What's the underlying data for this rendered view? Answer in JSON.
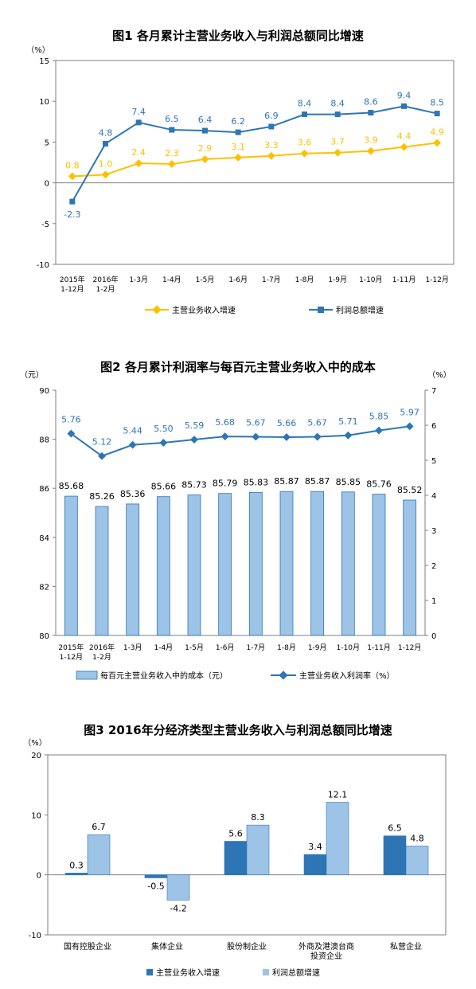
{
  "chart_data": [
    {
      "type": "line",
      "title": "图1  各月累计主营业务收入与利润总额同比增速",
      "y_unit": "（%）",
      "ylim": [
        -10,
        15
      ],
      "yticks": [
        "15",
        "10",
        "5",
        "0",
        "-5",
        "-10"
      ],
      "categories": [
        [
          "2015年",
          "1-12月"
        ],
        [
          "2016年",
          "1-2月"
        ],
        [
          "1-3月"
        ],
        [
          "1-4月"
        ],
        [
          "1-5月"
        ],
        [
          "1-6月"
        ],
        [
          "1-7月"
        ],
        [
          "1-8月"
        ],
        [
          "1-9月"
        ],
        [
          "1-10月"
        ],
        [
          "1-11月"
        ],
        [
          "1-12月"
        ]
      ],
      "series": [
        {
          "name": "主营业务收入增速",
          "color": "#ffc000",
          "marker": "diamond",
          "values": [
            0.8,
            1.0,
            2.4,
            2.3,
            2.9,
            3.1,
            3.3,
            3.6,
            3.7,
            3.9,
            4.4,
            4.9
          ],
          "labels": [
            "0.8",
            "1.0",
            "2.4",
            "2.3",
            "2.9",
            "3.1",
            "3.3",
            "3.6",
            "3.7",
            "3.9",
            "4.4",
            "4.9"
          ]
        },
        {
          "name": "利润总额增速",
          "color": "#2e75b6",
          "marker": "square",
          "values": [
            -2.3,
            4.8,
            7.4,
            6.5,
            6.4,
            6.2,
            6.9,
            8.4,
            8.4,
            8.6,
            9.4,
            8.5
          ],
          "labels": [
            "-2.3",
            "4.8",
            "7.4",
            "6.5",
            "6.4",
            "6.2",
            "6.9",
            "8.4",
            "8.4",
            "8.6",
            "9.4",
            "8.5"
          ]
        }
      ],
      "legend_placement": "bottom"
    },
    {
      "type": "bar+line",
      "title": "图2  各月累计利润率与每百元主营业务收入中的成本",
      "y_left_unit": "（元）",
      "y_right_unit": "（%）",
      "ylim_left": [
        80,
        90
      ],
      "ylim_right": [
        0,
        7
      ],
      "yticks_left": [
        "90",
        "88",
        "86",
        "84",
        "82",
        "80"
      ],
      "yticks_right": [
        "7",
        "6",
        "5",
        "4",
        "3",
        "2",
        "1",
        "0"
      ],
      "categories": [
        [
          "2015年",
          "1-12月"
        ],
        [
          "2016年",
          "1-2月"
        ],
        [
          "1-3月"
        ],
        [
          "1-4月"
        ],
        [
          "1-5月"
        ],
        [
          "1-6月"
        ],
        [
          "1-7月"
        ],
        [
          "1-8月"
        ],
        [
          "1-9月"
        ],
        [
          "1-10月"
        ],
        [
          "1-11月"
        ],
        [
          "1-12月"
        ]
      ],
      "bar_series": {
        "name": "每百元主营业务收入中的成本（元）",
        "color": "#9dc3e6",
        "values": [
          85.68,
          85.26,
          85.36,
          85.66,
          85.73,
          85.79,
          85.83,
          85.87,
          85.87,
          85.85,
          85.76,
          85.52
        ],
        "labels": [
          "85.68",
          "85.26",
          "85.36",
          "85.66",
          "85.73",
          "85.79",
          "85.83",
          "85.87",
          "85.87",
          "85.85",
          "85.76",
          "85.52"
        ]
      },
      "line_series": {
        "name": "主营业务收入利润率（%）",
        "color": "#2e75b6",
        "marker": "diamond",
        "values": [
          5.76,
          5.12,
          5.44,
          5.5,
          5.59,
          5.68,
          5.67,
          5.66,
          5.67,
          5.71,
          5.85,
          5.97
        ],
        "labels": [
          "5.76",
          "5.12",
          "5.44",
          "5.50",
          "5.59",
          "5.68",
          "5.67",
          "5.66",
          "5.67",
          "5.71",
          "5.85",
          "5.97"
        ]
      },
      "legend_placement": "bottom"
    },
    {
      "type": "bar",
      "title": "图3  2016年分经济类型主营业务收入与利润总额同比增速",
      "y_unit": "（%）",
      "ylim": [
        -10,
        20
      ],
      "yticks": [
        "20",
        "10",
        "0",
        "-10"
      ],
      "categories": [
        [
          "国有控股企业"
        ],
        [
          "集体企业"
        ],
        [
          "股份制企业"
        ],
        [
          "外商及港澳台商",
          "投资企业"
        ],
        [
          "私营企业"
        ]
      ],
      "series": [
        {
          "name": "主营业务收入增速",
          "color": "#2e75b6",
          "values": [
            0.3,
            -0.5,
            5.6,
            3.4,
            6.5
          ],
          "labels": [
            "0.3",
            "-0.5",
            "5.6",
            "3.4",
            "6.5"
          ]
        },
        {
          "name": "利润总额增速",
          "color": "#9dc3e6",
          "values": [
            6.7,
            -4.2,
            8.3,
            12.1,
            4.8
          ],
          "labels": [
            "6.7",
            "-4.2",
            "8.3",
            "12.1",
            "4.8"
          ]
        }
      ],
      "legend_placement": "bottom"
    }
  ]
}
